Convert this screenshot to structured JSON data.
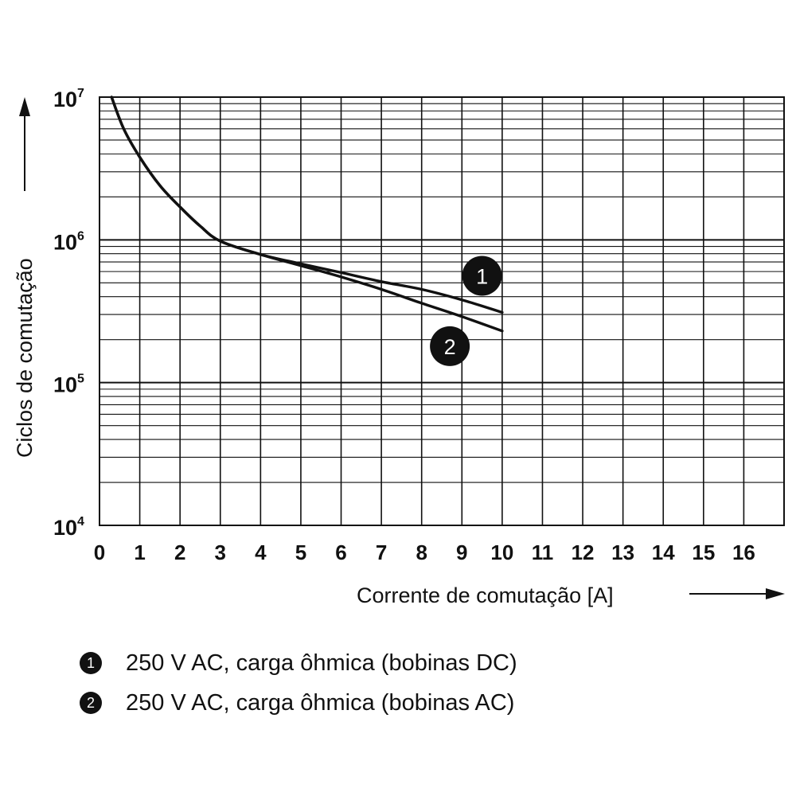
{
  "chart_data": {
    "type": "line",
    "title": "",
    "xlabel": "Corrente de comutação [A]",
    "ylabel": "Ciclos de comutação",
    "xlim": [
      0,
      17
    ],
    "ylim": [
      10000,
      10000000
    ],
    "yscale": "log",
    "grid": true,
    "x_ticks": [
      "0",
      "1",
      "2",
      "3",
      "4",
      "5",
      "6",
      "7",
      "8",
      "9",
      "10",
      "11",
      "12",
      "13",
      "14",
      "15",
      "16"
    ],
    "y_ticks": [
      {
        "base": "10",
        "exp": "4"
      },
      {
        "base": "10",
        "exp": "5"
      },
      {
        "base": "10",
        "exp": "6"
      },
      {
        "base": "10",
        "exp": "7"
      }
    ],
    "series": [
      {
        "marker": "1",
        "label": "250 V AC, carga ôhmica (bobinas DC)",
        "x": [
          0.3,
          0.6,
          1.0,
          1.5,
          2.0,
          2.5,
          3.0,
          4.0,
          5.0,
          6.0,
          7.0,
          8.0,
          9.0,
          10.0
        ],
        "y": [
          10000000,
          6000000,
          3800000,
          2400000,
          1700000,
          1250000,
          980000,
          790000,
          680000,
          590000,
          510000,
          450000,
          380000,
          310000
        ]
      },
      {
        "marker": "2",
        "label": "250 V AC, carga ôhmica (bobinas AC)",
        "x": [
          0.3,
          0.6,
          1.0,
          1.5,
          2.0,
          2.5,
          3.0,
          4.0,
          5.0,
          6.0,
          7.0,
          8.0,
          9.0,
          10.0
        ],
        "y": [
          10000000,
          6000000,
          3800000,
          2400000,
          1700000,
          1250000,
          980000,
          790000,
          660000,
          550000,
          450000,
          360000,
          290000,
          230000
        ]
      }
    ],
    "annotations": [
      {
        "text": "1",
        "x": 9.5,
        "y": 560000
      },
      {
        "text": "2",
        "x": 8.7,
        "y": 180000
      }
    ]
  }
}
